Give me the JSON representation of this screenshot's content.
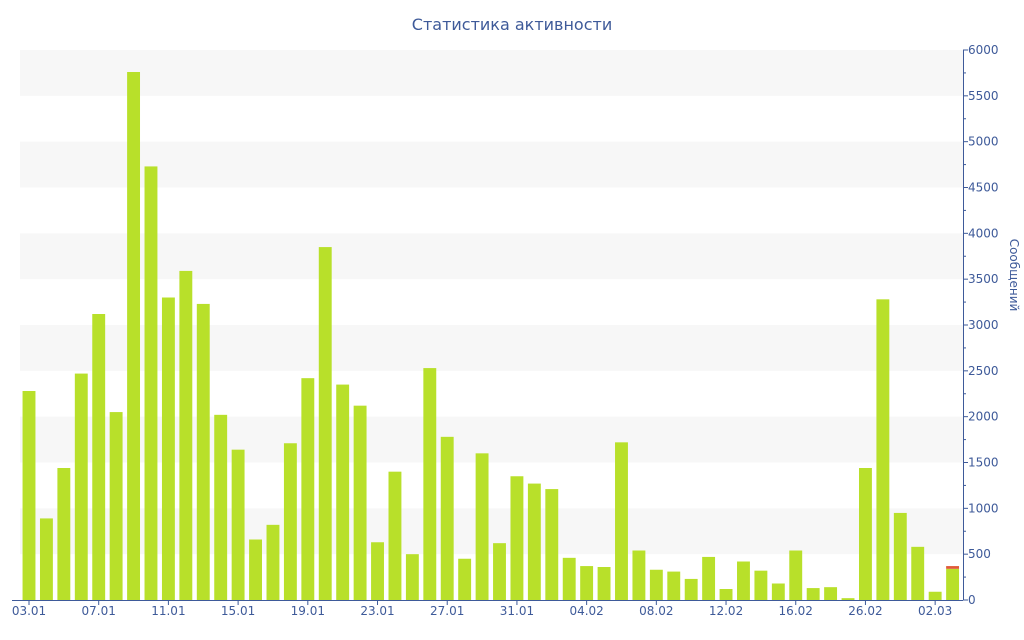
{
  "chart_data": {
    "type": "bar",
    "title": "Статистика активности",
    "ylabel": "Сообщений",
    "xlabel": "",
    "ylim": [
      0,
      6000
    ],
    "y_ticks": [
      0,
      500,
      1000,
      1500,
      2000,
      2500,
      3000,
      3500,
      4000,
      4500,
      5000,
      5500,
      6000
    ],
    "y_axis_side": "right",
    "grid": "alternating horizontal bands",
    "legend": "none",
    "x_tick_labels": [
      {
        "label": "03.01",
        "index": 0
      },
      {
        "label": "07.01",
        "index": 4
      },
      {
        "label": "11.01",
        "index": 8
      },
      {
        "label": "15.01",
        "index": 12
      },
      {
        "label": "19.01",
        "index": 16
      },
      {
        "label": "23.01",
        "index": 20
      },
      {
        "label": "27.01",
        "index": 24
      },
      {
        "label": "31.01",
        "index": 28
      },
      {
        "label": "04.02",
        "index": 32
      },
      {
        "label": "08.02",
        "index": 36
      },
      {
        "label": "12.02",
        "index": 40
      },
      {
        "label": "16.02",
        "index": 44
      },
      {
        "label": "26.02",
        "index": 48
      },
      {
        "label": "02.03",
        "index": 52
      }
    ],
    "series": [
      {
        "color": "#b8e02a",
        "values": [
          2280,
          890,
          1440,
          2470,
          3120,
          2050,
          5760,
          4730,
          3300,
          3590,
          3230,
          2020,
          1640,
          660,
          820,
          1710,
          2420,
          3850,
          2350,
          2120,
          630,
          1400,
          500,
          2530,
          1780,
          450,
          1600,
          620,
          1350,
          1270,
          1210,
          460,
          370,
          360,
          1720,
          540,
          330,
          310,
          230,
          470,
          120,
          420,
          320,
          180,
          540,
          130,
          140,
          20,
          1440,
          3280,
          950,
          580,
          90,
          340
        ]
      },
      {
        "color": "#e05a3a",
        "values": [
          0,
          0,
          0,
          0,
          0,
          0,
          0,
          0,
          0,
          0,
          0,
          0,
          0,
          0,
          0,
          0,
          0,
          0,
          0,
          0,
          0,
          0,
          0,
          0,
          0,
          0,
          0,
          0,
          0,
          0,
          0,
          0,
          0,
          0,
          0,
          0,
          0,
          0,
          0,
          0,
          0,
          0,
          0,
          0,
          0,
          0,
          0,
          0,
          0,
          0,
          0,
          0,
          0,
          30
        ]
      }
    ]
  },
  "colors": {
    "text": "#3e5a99",
    "axis": "#3e5a99",
    "band": "#f7f7f7",
    "bar": "#b8e02a",
    "bar_top": "#e05a3a"
  }
}
